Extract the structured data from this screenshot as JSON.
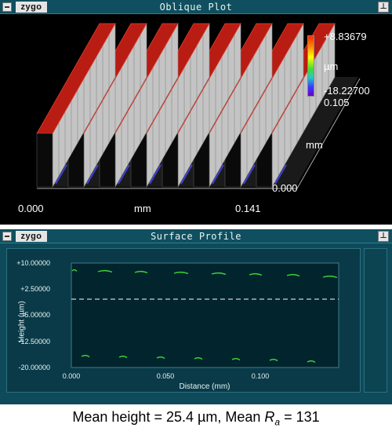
{
  "oblique_window": {
    "brand": "zygo",
    "title": "Oblique Plot",
    "scale": {
      "max": "+8.83679",
      "unit": "µm",
      "min": "-18.22700"
    },
    "y_axis": {
      "max": "0.105",
      "unit": "mm",
      "min": "0.000"
    },
    "x_axis": {
      "min": "0.000",
      "unit": "mm",
      "max": "0.141"
    },
    "colors": {
      "top": "#b81c12",
      "wall": "#c4c4c4",
      "background": "#000000",
      "floor": "#4040d0"
    }
  },
  "profile_window": {
    "brand": "zygo",
    "title": "Surface Profile",
    "y_ticks": [
      "+10.00000",
      "+2.50000",
      "-5.00000",
      "-12.50000",
      "-20.00000"
    ],
    "y_label": "Height (µm)",
    "x_ticks": [
      "0.000",
      "0.050",
      "0.100"
    ],
    "x_label": "Distance (mm)",
    "colors": {
      "trace": "#38d038",
      "panel": "#02242c",
      "frame": "#0e4a5a"
    }
  },
  "caption": {
    "prefix": "Mean height = 25.4 µm, Mean ",
    "ra_main": "R",
    "ra_sub": "a",
    "suffix": " = 131"
  }
}
